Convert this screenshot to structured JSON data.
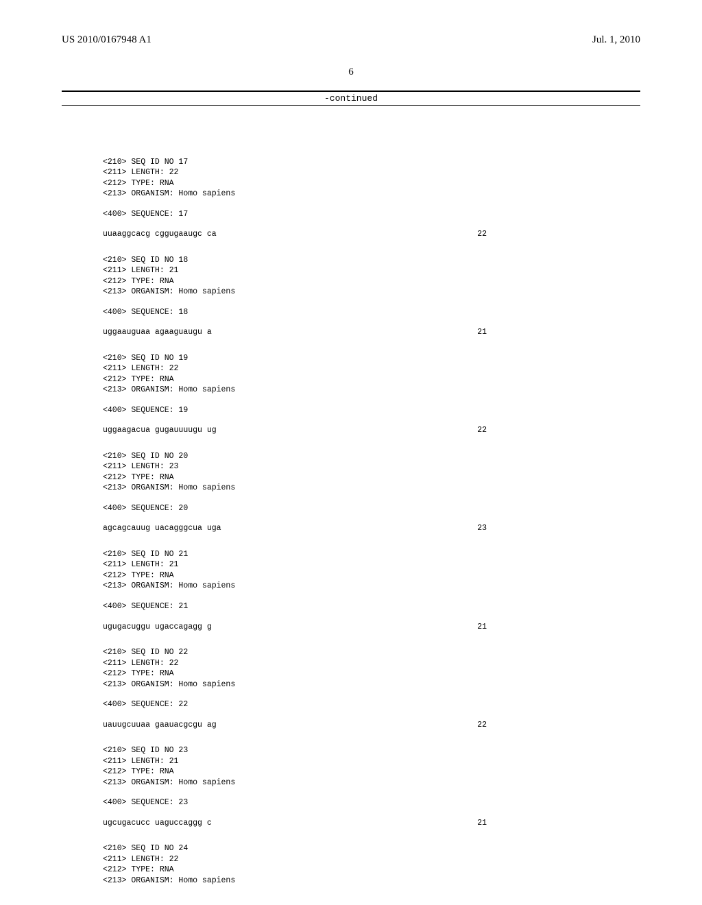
{
  "header": {
    "left": "US 2010/0167948 A1",
    "right": "Jul. 1, 2010"
  },
  "pageNumber": "6",
  "continuedLabel": "-continued",
  "entries": [
    {
      "seqIdLine": "<210> SEQ ID NO 17",
      "lengthLine": "<211> LENGTH: 22",
      "typeLine": "<212> TYPE: RNA",
      "organismLine": "<213> ORGANISM: Homo sapiens",
      "sequenceLabel": "<400> SEQUENCE: 17",
      "sequence": "uuaaggcacg cggugaaugc ca",
      "seqLen": "22"
    },
    {
      "seqIdLine": "<210> SEQ ID NO 18",
      "lengthLine": "<211> LENGTH: 21",
      "typeLine": "<212> TYPE: RNA",
      "organismLine": "<213> ORGANISM: Homo sapiens",
      "sequenceLabel": "<400> SEQUENCE: 18",
      "sequence": "uggaauguaa agaaguaugu a",
      "seqLen": "21"
    },
    {
      "seqIdLine": "<210> SEQ ID NO 19",
      "lengthLine": "<211> LENGTH: 22",
      "typeLine": "<212> TYPE: RNA",
      "organismLine": "<213> ORGANISM: Homo sapiens",
      "sequenceLabel": "<400> SEQUENCE: 19",
      "sequence": "uggaagacua gugauuuugu ug",
      "seqLen": "22"
    },
    {
      "seqIdLine": "<210> SEQ ID NO 20",
      "lengthLine": "<211> LENGTH: 23",
      "typeLine": "<212> TYPE: RNA",
      "organismLine": "<213> ORGANISM: Homo sapiens",
      "sequenceLabel": "<400> SEQUENCE: 20",
      "sequence": "agcagcauug uacagggcua uga",
      "seqLen": "23"
    },
    {
      "seqIdLine": "<210> SEQ ID NO 21",
      "lengthLine": "<211> LENGTH: 21",
      "typeLine": "<212> TYPE: RNA",
      "organismLine": "<213> ORGANISM: Homo sapiens",
      "sequenceLabel": "<400> SEQUENCE: 21",
      "sequence": "ugugacuggu ugaccagagg g",
      "seqLen": "21"
    },
    {
      "seqIdLine": "<210> SEQ ID NO 22",
      "lengthLine": "<211> LENGTH: 22",
      "typeLine": "<212> TYPE: RNA",
      "organismLine": "<213> ORGANISM: Homo sapiens",
      "sequenceLabel": "<400> SEQUENCE: 22",
      "sequence": "uauugcuuaa gaauacgcgu ag",
      "seqLen": "22"
    },
    {
      "seqIdLine": "<210> SEQ ID NO 23",
      "lengthLine": "<211> LENGTH: 21",
      "typeLine": "<212> TYPE: RNA",
      "organismLine": "<213> ORGANISM: Homo sapiens",
      "sequenceLabel": "<400> SEQUENCE: 23",
      "sequence": "ugcugacucc uaguccaggg c",
      "seqLen": "21"
    },
    {
      "seqIdLine": "<210> SEQ ID NO 24",
      "lengthLine": "<211> LENGTH: 22",
      "typeLine": "<212> TYPE: RNA",
      "organismLine": "<213> ORGANISM: Homo sapiens",
      "sequenceLabel": "",
      "sequence": "",
      "seqLen": ""
    }
  ]
}
